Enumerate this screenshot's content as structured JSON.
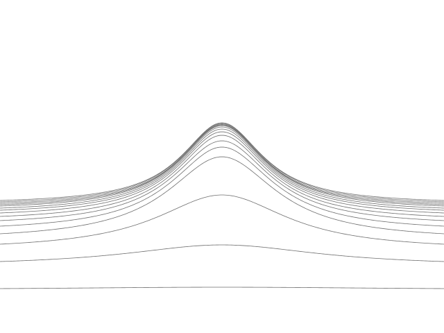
{
  "scene": {
    "background": "#ffffff",
    "stroke_color": "#6e6e6e",
    "description_kind": "line-art",
    "line_count": 15,
    "peak_profile": "lorentzian"
  }
}
